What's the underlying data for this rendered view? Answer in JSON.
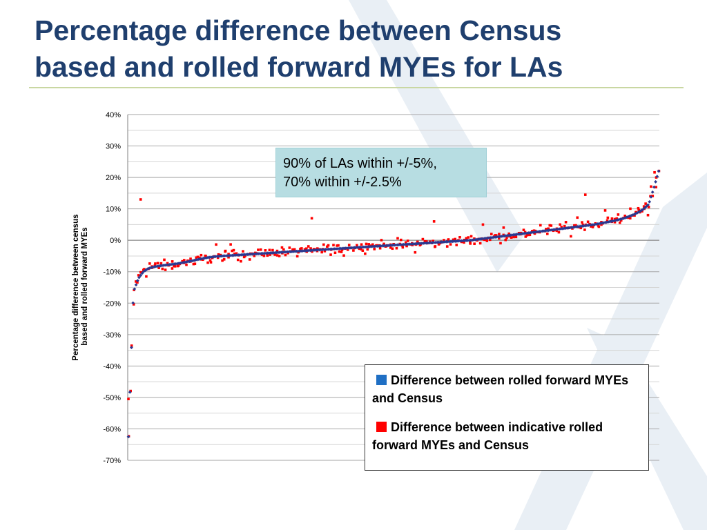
{
  "slide": {
    "title_line1": "Percentage difference between Census",
    "title_line2": "based and rolled forward MYEs for LAs",
    "title_color": "#1f3f6e",
    "rule_color": "#c9d7a2"
  },
  "callout": {
    "line1": "90% of LAs within +/-5%,",
    "line2": "70% within +/-2.5%",
    "background": "#b7dde2"
  },
  "legend": {
    "items": [
      {
        "label": "Difference between rolled forward MYEs and Census",
        "color": "#1f6fc4"
      },
      {
        "label": "Difference between indicative rolled forward MYEs and Census",
        "color": "#ff0000"
      }
    ]
  },
  "chart_data": {
    "type": "scatter",
    "ylabel_line1": "Percentage difference between  census",
    "ylabel_line2": "based and rolled forward MYEs",
    "yticks": [
      "40%",
      "30%",
      "20%",
      "10%",
      "0%",
      "-10%",
      "-20%",
      "-30%",
      "-40%",
      "-50%",
      "-60%",
      "-70%"
    ],
    "ylim": [
      -70,
      40
    ],
    "ytick_step": 10,
    "y_unit": "%",
    "gridlines": "horizontal major and minor",
    "n_points": 348,
    "series": [
      {
        "name": "Difference between rolled forward MYEs and Census",
        "marker": "diamond",
        "color": "#2b3990",
        "values": [
          -62.5,
          -16.5,
          -12.2,
          -10,
          -9,
          -8.5,
          -8.2,
          -8,
          -7.8,
          -7.6,
          -7.4,
          -7.1,
          -6.8,
          -6.5,
          -6.1,
          -5.8,
          -5.5,
          -5.3,
          -5.1,
          -5,
          -4.9,
          -4.8,
          -4.7,
          -4.6,
          -4.5,
          -4.4,
          -4.3,
          -4.2,
          -4.1,
          -4,
          -3.9,
          -3.8,
          -3.7,
          -3.6,
          -3.5,
          -3.4,
          -3.3,
          -3.2,
          -3.1,
          -3,
          -2.9,
          -2.8,
          -2.7,
          -2.6,
          -2.5,
          -2.4,
          -2.3,
          -2.2,
          -2.1,
          -2,
          -1.9,
          -1.8,
          -1.7,
          -1.6,
          -1.5,
          -1.4,
          -1.3,
          -1.2,
          -1.1,
          -1,
          -0.9,
          -0.8,
          -0.7,
          -0.6,
          -0.5,
          -0.4,
          -0.3,
          -0.2,
          -0.1,
          0,
          0.2,
          0.4,
          0.6,
          0.8,
          1,
          1.2,
          1.4,
          1.6,
          1.8,
          2,
          2.2,
          2.4,
          2.6,
          2.8,
          3,
          3.2,
          3.4,
          3.6,
          3.8,
          4,
          4.2,
          4.4,
          4.6,
          4.8,
          5,
          5.3,
          5.6,
          5.9,
          6.2,
          6.6,
          7,
          7.6,
          8.2,
          9,
          10,
          11.5,
          16.5,
          22
        ]
      },
      {
        "name": "Difference between indicative rolled forward MYEs and Census",
        "marker": "square",
        "color": "#ff0000",
        "noted_outliers": [
          -50.5,
          13,
          7,
          6,
          8,
          5,
          14.5,
          9.5
        ],
        "spread_around_blue": 1.6
      }
    ]
  }
}
